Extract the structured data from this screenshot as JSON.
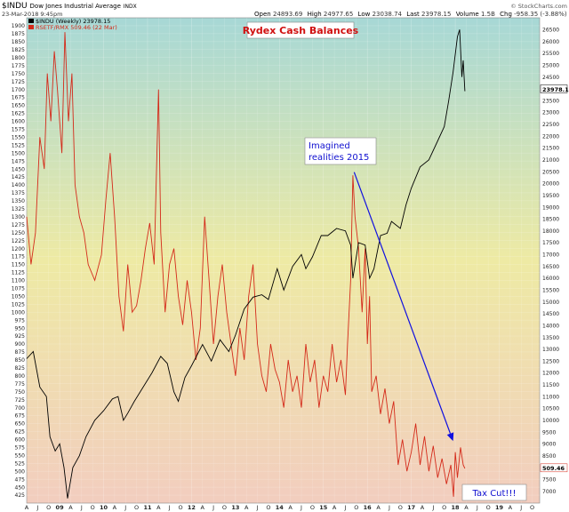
{
  "header": {
    "symbol": "$INDU",
    "name": "Dow Jones Industrial Average",
    "exchange": "INDX",
    "date": "23-Mar-2018 9:45pm",
    "open_label": "Open",
    "open": "24893.69",
    "high_label": "High",
    "high": "24977.65",
    "low_label": "Low",
    "low": "23038.74",
    "last_label": "Last",
    "last": "23978.15",
    "volume_label": "Volume",
    "volume": "1.5B",
    "chg_label": "Chg",
    "chg": "-958.35 (-3.88%)",
    "watermark": "© StockCharts.com"
  },
  "legend": [
    {
      "text": "$INDU (Weekly) 23978.15",
      "color": "#000000"
    },
    {
      "text": "RSETF/RMX 509.46 (22 Mar)",
      "color": "#d42a1a"
    }
  ],
  "annotations": {
    "title": "Rydex Cash Balances",
    "imagined_line1": "Imagined",
    "imagined_line2": "realities 2015",
    "tax_cut": "Tax Cut!!!"
  },
  "colors": {
    "bg_top": "#a7d8d6",
    "bg_mid": "#eeeaa4",
    "bg_bottom": "#f2cdbf",
    "indu": "#000000",
    "rydex": "#d42a1a",
    "arrow": "#1010e0",
    "annotation_text": "#d01010",
    "annotation_blue": "#1010d0"
  },
  "chart_data": {
    "type": "line",
    "left_axis": {
      "series": "RSETF/RMX",
      "range": [
        400,
        1925
      ],
      "ticks": [
        425,
        450,
        475,
        500,
        525,
        550,
        575,
        600,
        625,
        650,
        675,
        700,
        725,
        750,
        775,
        800,
        825,
        850,
        875,
        900,
        925,
        950,
        975,
        1000,
        1025,
        1050,
        1075,
        1100,
        1125,
        1150,
        1175,
        1200,
        1225,
        1250,
        1275,
        1300,
        1325,
        1350,
        1375,
        1400,
        1425,
        1450,
        1475,
        1500,
        1525,
        1550,
        1575,
        1600,
        1625,
        1650,
        1675,
        1700,
        1725,
        1750,
        1775,
        1800,
        1825,
        1850,
        1875,
        1900
      ],
      "last_value": "509.46"
    },
    "right_axis": {
      "series": "$INDU",
      "range": [
        6500,
        27000
      ],
      "ticks": [
        7000,
        7500,
        8000,
        8500,
        9000,
        9500,
        10000,
        10500,
        11000,
        11500,
        12000,
        12500,
        13000,
        13500,
        14000,
        14500,
        15000,
        15500,
        16000,
        16500,
        17000,
        17500,
        18000,
        18500,
        19000,
        19500,
        20000,
        20500,
        21000,
        21500,
        22000,
        22500,
        23000,
        23500,
        24000,
        24500,
        25000,
        25500,
        26000,
        26500
      ],
      "last_value": "23978.15"
    },
    "x_axis": {
      "start": 2008.25,
      "end": 2019.92,
      "tick_labels": [
        {
          "label": "A",
          "t": 2008.25
        },
        {
          "label": "J",
          "t": 2008.5
        },
        {
          "label": "O",
          "t": 2008.75
        },
        {
          "label": "09",
          "t": 2009.0
        },
        {
          "label": "A",
          "t": 2009.25
        },
        {
          "label": "J",
          "t": 2009.5
        },
        {
          "label": "O",
          "t": 2009.75
        },
        {
          "label": "10",
          "t": 2010.0
        },
        {
          "label": "A",
          "t": 2010.25
        },
        {
          "label": "J",
          "t": 2010.5
        },
        {
          "label": "O",
          "t": 2010.75
        },
        {
          "label": "11",
          "t": 2011.0
        },
        {
          "label": "A",
          "t": 2011.25
        },
        {
          "label": "J",
          "t": 2011.5
        },
        {
          "label": "O",
          "t": 2011.75
        },
        {
          "label": "12",
          "t": 2012.0
        },
        {
          "label": "A",
          "t": 2012.25
        },
        {
          "label": "J",
          "t": 2012.5
        },
        {
          "label": "O",
          "t": 2012.75
        },
        {
          "label": "13",
          "t": 2013.0
        },
        {
          "label": "A",
          "t": 2013.25
        },
        {
          "label": "J",
          "t": 2013.5
        },
        {
          "label": "O",
          "t": 2013.75
        },
        {
          "label": "14",
          "t": 2014.0
        },
        {
          "label": "A",
          "t": 2014.25
        },
        {
          "label": "J",
          "t": 2014.5
        },
        {
          "label": "O",
          "t": 2014.75
        },
        {
          "label": "15",
          "t": 2015.0
        },
        {
          "label": "A",
          "t": 2015.25
        },
        {
          "label": "J",
          "t": 2015.5
        },
        {
          "label": "O",
          "t": 2015.75
        },
        {
          "label": "16",
          "t": 2016.0
        },
        {
          "label": "A",
          "t": 2016.25
        },
        {
          "label": "J",
          "t": 2016.5
        },
        {
          "label": "O",
          "t": 2016.75
        },
        {
          "label": "17",
          "t": 2017.0
        },
        {
          "label": "A",
          "t": 2017.25
        },
        {
          "label": "J",
          "t": 2017.5
        },
        {
          "label": "O",
          "t": 2017.75
        },
        {
          "label": "18",
          "t": 2018.0
        },
        {
          "label": "A",
          "t": 2018.25
        },
        {
          "label": "J",
          "t": 2018.5
        },
        {
          "label": "O",
          "t": 2018.75
        },
        {
          "label": "19",
          "t": 2019.0
        },
        {
          "label": "A",
          "t": 2019.25
        },
        {
          "label": "J",
          "t": 2019.5
        },
        {
          "label": "O",
          "t": 2019.75
        }
      ]
    },
    "series": [
      {
        "name": "$INDU",
        "axis": "right",
        "points": [
          [
            2008.25,
            12600
          ],
          [
            2008.4,
            12900
          ],
          [
            2008.55,
            11400
          ],
          [
            2008.7,
            11000
          ],
          [
            2008.78,
            9300
          ],
          [
            2008.9,
            8700
          ],
          [
            2009.0,
            9000
          ],
          [
            2009.1,
            8000
          ],
          [
            2009.18,
            6700
          ],
          [
            2009.3,
            8000
          ],
          [
            2009.45,
            8500
          ],
          [
            2009.6,
            9300
          ],
          [
            2009.8,
            10000
          ],
          [
            2010.0,
            10400
          ],
          [
            2010.2,
            10900
          ],
          [
            2010.33,
            11000
          ],
          [
            2010.45,
            10000
          ],
          [
            2010.55,
            10300
          ],
          [
            2010.7,
            10800
          ],
          [
            2010.9,
            11400
          ],
          [
            2011.1,
            12000
          ],
          [
            2011.3,
            12700
          ],
          [
            2011.45,
            12400
          ],
          [
            2011.6,
            11200
          ],
          [
            2011.7,
            10800
          ],
          [
            2011.85,
            11800
          ],
          [
            2012.0,
            12300
          ],
          [
            2012.25,
            13200
          ],
          [
            2012.45,
            12500
          ],
          [
            2012.65,
            13400
          ],
          [
            2012.85,
            12900
          ],
          [
            2013.0,
            13600
          ],
          [
            2013.2,
            14700
          ],
          [
            2013.4,
            15200
          ],
          [
            2013.6,
            15300
          ],
          [
            2013.75,
            15100
          ],
          [
            2013.95,
            16400
          ],
          [
            2014.1,
            15500
          ],
          [
            2014.3,
            16500
          ],
          [
            2014.5,
            17000
          ],
          [
            2014.6,
            16400
          ],
          [
            2014.75,
            16900
          ],
          [
            2014.95,
            17800
          ],
          [
            2015.1,
            17800
          ],
          [
            2015.3,
            18100
          ],
          [
            2015.5,
            18000
          ],
          [
            2015.62,
            17400
          ],
          [
            2015.67,
            16000
          ],
          [
            2015.8,
            17500
          ],
          [
            2015.95,
            17400
          ],
          [
            2016.05,
            16000
          ],
          [
            2016.15,
            16400
          ],
          [
            2016.3,
            17800
          ],
          [
            2016.45,
            17900
          ],
          [
            2016.55,
            18400
          ],
          [
            2016.75,
            18100
          ],
          [
            2016.88,
            19100
          ],
          [
            2017.0,
            19800
          ],
          [
            2017.2,
            20700
          ],
          [
            2017.4,
            21000
          ],
          [
            2017.6,
            21800
          ],
          [
            2017.75,
            22400
          ],
          [
            2017.85,
            23500
          ],
          [
            2017.95,
            24700
          ],
          [
            2018.05,
            26200
          ],
          [
            2018.1,
            26500
          ],
          [
            2018.15,
            24500
          ],
          [
            2018.18,
            25200
          ],
          [
            2018.22,
            23900
          ]
        ]
      },
      {
        "name": "RSETF/RMX",
        "axis": "left",
        "points": [
          [
            2008.25,
            1300
          ],
          [
            2008.35,
            1150
          ],
          [
            2008.45,
            1250
          ],
          [
            2008.55,
            1550
          ],
          [
            2008.65,
            1450
          ],
          [
            2008.72,
            1750
          ],
          [
            2008.8,
            1600
          ],
          [
            2008.88,
            1820
          ],
          [
            2008.95,
            1700
          ],
          [
            2009.05,
            1500
          ],
          [
            2009.12,
            1880
          ],
          [
            2009.2,
            1600
          ],
          [
            2009.28,
            1750
          ],
          [
            2009.35,
            1400
          ],
          [
            2009.45,
            1300
          ],
          [
            2009.55,
            1250
          ],
          [
            2009.65,
            1150
          ],
          [
            2009.8,
            1100
          ],
          [
            2009.95,
            1180
          ],
          [
            2010.05,
            1350
          ],
          [
            2010.15,
            1500
          ],
          [
            2010.25,
            1300
          ],
          [
            2010.35,
            1050
          ],
          [
            2010.45,
            940
          ],
          [
            2010.55,
            1150
          ],
          [
            2010.65,
            1000
          ],
          [
            2010.75,
            1020
          ],
          [
            2010.85,
            1100
          ],
          [
            2010.95,
            1200
          ],
          [
            2011.05,
            1280
          ],
          [
            2011.15,
            1150
          ],
          [
            2011.25,
            1700
          ],
          [
            2011.3,
            1250
          ],
          [
            2011.4,
            1000
          ],
          [
            2011.5,
            1150
          ],
          [
            2011.6,
            1200
          ],
          [
            2011.7,
            1050
          ],
          [
            2011.8,
            960
          ],
          [
            2011.9,
            1100
          ],
          [
            2012.0,
            1000
          ],
          [
            2012.1,
            850
          ],
          [
            2012.2,
            950
          ],
          [
            2012.3,
            1300
          ],
          [
            2012.4,
            1100
          ],
          [
            2012.5,
            900
          ],
          [
            2012.6,
            1050
          ],
          [
            2012.7,
            1150
          ],
          [
            2012.8,
            1000
          ],
          [
            2012.9,
            900
          ],
          [
            2013.0,
            800
          ],
          [
            2013.1,
            950
          ],
          [
            2013.2,
            850
          ],
          [
            2013.3,
            1050
          ],
          [
            2013.4,
            1150
          ],
          [
            2013.5,
            900
          ],
          [
            2013.6,
            800
          ],
          [
            2013.7,
            750
          ],
          [
            2013.8,
            900
          ],
          [
            2013.9,
            820
          ],
          [
            2014.0,
            780
          ],
          [
            2014.1,
            700
          ],
          [
            2014.2,
            850
          ],
          [
            2014.3,
            750
          ],
          [
            2014.4,
            800
          ],
          [
            2014.5,
            700
          ],
          [
            2014.6,
            900
          ],
          [
            2014.7,
            780
          ],
          [
            2014.8,
            850
          ],
          [
            2014.9,
            700
          ],
          [
            2015.0,
            800
          ],
          [
            2015.1,
            750
          ],
          [
            2015.2,
            900
          ],
          [
            2015.3,
            780
          ],
          [
            2015.4,
            850
          ],
          [
            2015.5,
            740
          ],
          [
            2015.55,
            900
          ],
          [
            2015.62,
            1100
          ],
          [
            2015.67,
            1430
          ],
          [
            2015.72,
            1300
          ],
          [
            2015.8,
            1200
          ],
          [
            2015.88,
            1000
          ],
          [
            2015.95,
            1200
          ],
          [
            2016.0,
            900
          ],
          [
            2016.05,
            1050
          ],
          [
            2016.1,
            750
          ],
          [
            2016.2,
            800
          ],
          [
            2016.3,
            680
          ],
          [
            2016.4,
            760
          ],
          [
            2016.5,
            650
          ],
          [
            2016.6,
            720
          ],
          [
            2016.7,
            520
          ],
          [
            2016.8,
            600
          ],
          [
            2016.9,
            500
          ],
          [
            2017.0,
            560
          ],
          [
            2017.1,
            650
          ],
          [
            2017.2,
            520
          ],
          [
            2017.3,
            610
          ],
          [
            2017.4,
            500
          ],
          [
            2017.5,
            580
          ],
          [
            2017.6,
            480
          ],
          [
            2017.7,
            540
          ],
          [
            2017.8,
            460
          ],
          [
            2017.9,
            520
          ],
          [
            2017.96,
            420
          ],
          [
            2018.0,
            560
          ],
          [
            2018.05,
            480
          ],
          [
            2018.12,
            575
          ],
          [
            2018.18,
            520
          ],
          [
            2018.22,
            509
          ]
        ]
      }
    ],
    "arrow": {
      "from": [
        2015.7,
        1440
      ],
      "to": [
        2017.95,
        595
      ]
    }
  }
}
